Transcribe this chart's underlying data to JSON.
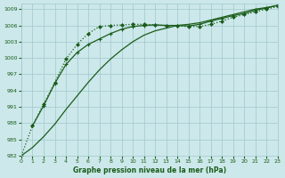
{
  "bg_color": "#cce8ea",
  "grid_color": "#a0c8cc",
  "line_color": "#1a5c1a",
  "xlabel": "Graphe pression niveau de la mer (hPa)",
  "ylim": [
    982,
    1010
  ],
  "xlim": [
    0,
    23
  ],
  "yticks": [
    982,
    985,
    988,
    991,
    994,
    997,
    1000,
    1003,
    1006,
    1009
  ],
  "xticks": [
    0,
    1,
    2,
    3,
    4,
    5,
    6,
    7,
    8,
    9,
    10,
    11,
    12,
    13,
    14,
    15,
    16,
    17,
    18,
    19,
    20,
    21,
    22,
    23
  ],
  "series1_x": [
    0,
    1,
    2,
    3,
    4,
    5,
    6,
    7,
    8,
    9,
    10,
    11,
    12,
    13,
    14,
    15,
    16,
    17,
    18,
    19,
    20,
    21,
    22,
    23
  ],
  "series1_y": [
    982,
    987.5,
    991.5,
    995.5,
    999.8,
    1002.5,
    1004.5,
    1005.8,
    1006.0,
    1006.1,
    1006.2,
    1006.2,
    1006.1,
    1006.0,
    1005.9,
    1005.8,
    1005.8,
    1006.2,
    1006.8,
    1007.5,
    1008.0,
    1008.5,
    1009.0,
    1009.5
  ],
  "series2_x": [
    1,
    2,
    3,
    4,
    5,
    6,
    7,
    8,
    9,
    10,
    11,
    12,
    13,
    14,
    15,
    16,
    17,
    18,
    19,
    20,
    21,
    22,
    23
  ],
  "series2_y": [
    987.5,
    991.2,
    995.3,
    998.8,
    1001.0,
    1002.5,
    1003.5,
    1004.5,
    1005.3,
    1005.8,
    1006.0,
    1006.1,
    1006.0,
    1006.0,
    1005.9,
    1006.2,
    1006.8,
    1007.3,
    1007.8,
    1008.2,
    1008.8,
    1009.2,
    1009.7
  ],
  "series3_x": [
    0,
    1,
    2,
    3,
    4,
    5,
    6,
    7,
    8,
    9,
    10,
    11,
    12,
    13,
    14,
    15,
    16,
    17,
    18,
    19,
    20,
    21,
    22,
    23
  ],
  "series3_y": [
    982,
    983.5,
    985.5,
    987.8,
    990.5,
    993.0,
    995.5,
    997.8,
    999.8,
    1001.5,
    1003.0,
    1004.2,
    1005.0,
    1005.5,
    1006.0,
    1006.2,
    1006.5,
    1007.0,
    1007.5,
    1008.0,
    1008.5,
    1009.0,
    1009.3,
    1009.7
  ]
}
